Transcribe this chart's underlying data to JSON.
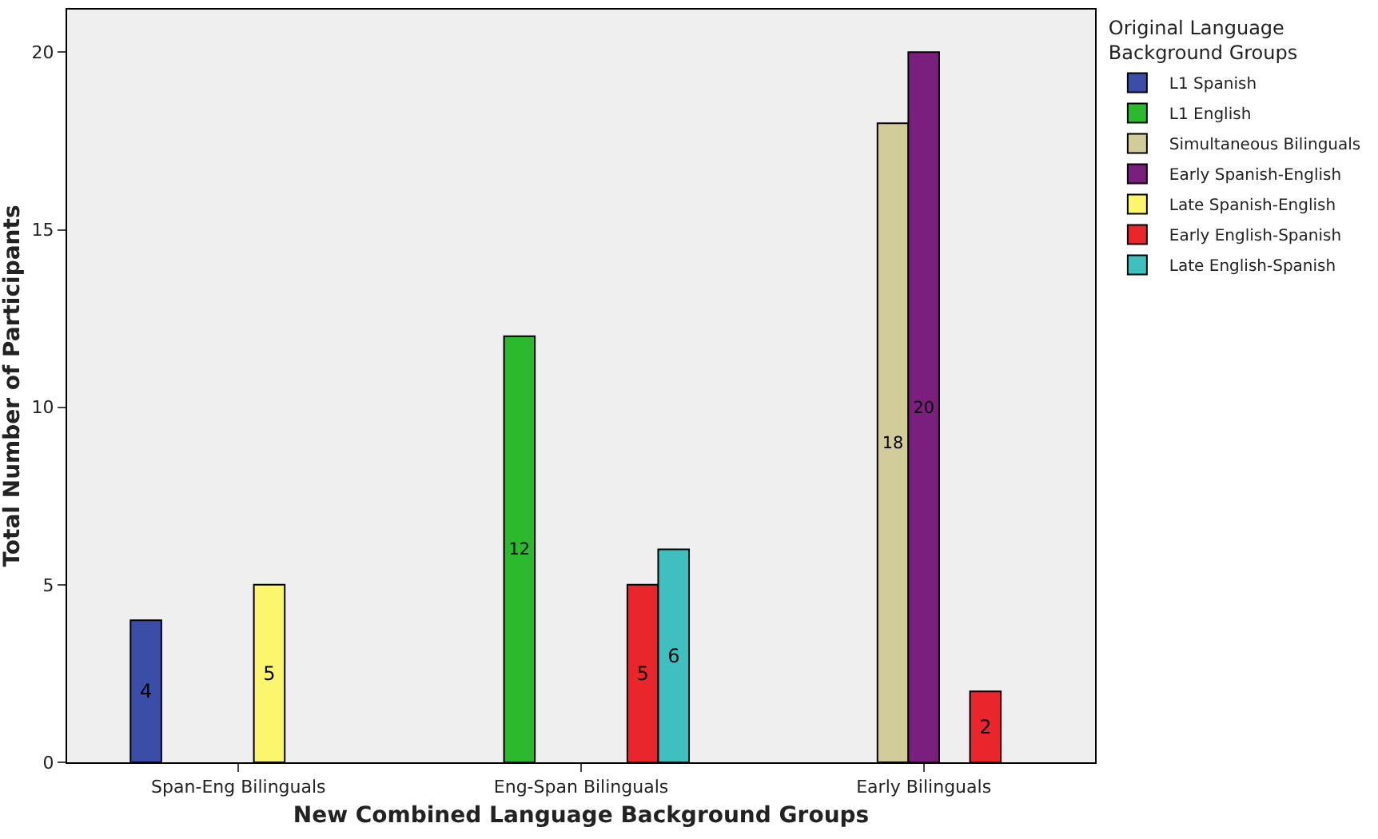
{
  "chart_data": {
    "type": "bar",
    "xlabel": "New Combined Language Background Groups",
    "ylabel": "Total Number of Participants",
    "legend_title": "Original Language Background Groups",
    "categories": [
      "Span-Eng Bilinguals",
      "Eng-Span Bilinguals",
      "Early Bilinguals"
    ],
    "series": [
      {
        "name": "L1 Spanish",
        "color": "#3a4ea8",
        "values": [
          4,
          null,
          null
        ]
      },
      {
        "name": "L1 English",
        "color": "#2db92d",
        "values": [
          null,
          12,
          null
        ]
      },
      {
        "name": "Simultaneous Bilinguals",
        "color": "#d2cc9a",
        "values": [
          null,
          null,
          18
        ]
      },
      {
        "name": "Early Spanish-English",
        "color": "#7a1f7d",
        "values": [
          null,
          null,
          20
        ]
      },
      {
        "name": "Late Spanish-English",
        "color": "#fbf66e",
        "values": [
          5,
          null,
          null
        ]
      },
      {
        "name": "Early English-Spanish",
        "color": "#e8262b",
        "values": [
          null,
          5,
          2
        ]
      },
      {
        "name": "Late English-Spanish",
        "color": "#3fbfbf",
        "values": [
          null,
          6,
          null
        ]
      }
    ],
    "ylim": [
      0,
      21.2
    ],
    "yticks": [
      0,
      5,
      10,
      15,
      20
    ],
    "grid": false,
    "legend": "top right",
    "data_labels": true
  }
}
